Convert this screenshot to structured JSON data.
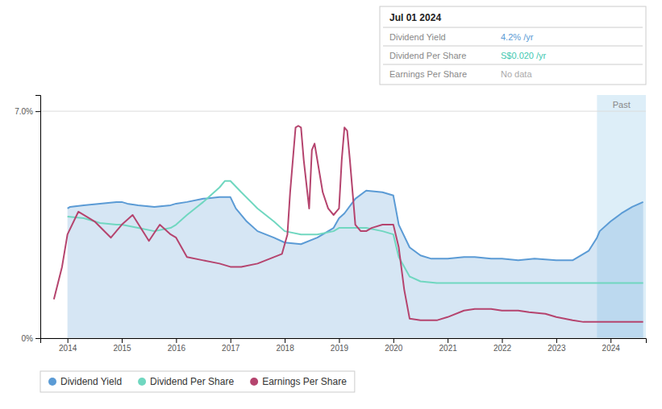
{
  "chart_data": {
    "type": "line",
    "xlim": [
      2013.5,
      2024.65
    ],
    "xticks": [
      2014,
      2015,
      2016,
      2017,
      2018,
      2019,
      2020,
      2021,
      2022,
      2023,
      2024
    ],
    "ylim": [
      0,
      7.5
    ],
    "yticks": [
      {
        "value": 0,
        "label": "0%"
      },
      {
        "value": 7.0,
        "label": "7.0%"
      }
    ],
    "grid": "y",
    "legend": "bottom",
    "annotations": [
      {
        "label": "Past",
        "xlim": [
          2023.75,
          2024.65
        ],
        "color": "#ddeef8"
      }
    ],
    "info_box": {
      "title": "Jul 01 2024",
      "rows": [
        {
          "label": "Dividend Yield",
          "value": "4.2% /yr",
          "color": "#5b9bd5"
        },
        {
          "label": "Dividend Per Share",
          "value": "S$0.020 /yr",
          "color": "#40c8b0"
        },
        {
          "label": "Earnings Per Share",
          "value": "No data",
          "color": "#aaaaaa"
        }
      ]
    },
    "series": [
      {
        "name": "Dividend Yield",
        "type": "area",
        "color": "#5b9bd5",
        "x": [
          2014.0,
          2014.05,
          2014.3,
          2014.6,
          2014.9,
          2015.0,
          2015.1,
          2015.3,
          2015.6,
          2015.9,
          2016.0,
          2016.2,
          2016.5,
          2016.8,
          2017.0,
          2017.1,
          2017.3,
          2017.5,
          2017.8,
          2018.0,
          2018.3,
          2018.6,
          2018.9,
          2019.0,
          2019.1,
          2019.3,
          2019.5,
          2019.8,
          2020.0,
          2020.1,
          2020.3,
          2020.5,
          2020.7,
          2021.0,
          2021.3,
          2021.5,
          2021.8,
          2022.0,
          2022.3,
          2022.6,
          2023.0,
          2023.3,
          2023.6,
          2023.75,
          2023.8,
          2024.0,
          2024.2,
          2024.4,
          2024.6
        ],
        "values": [
          4.0,
          4.05,
          4.1,
          4.15,
          4.2,
          4.2,
          4.15,
          4.1,
          4.05,
          4.1,
          4.15,
          4.2,
          4.3,
          4.35,
          4.35,
          4.0,
          3.6,
          3.3,
          3.1,
          2.95,
          2.9,
          3.1,
          3.4,
          3.7,
          3.85,
          4.3,
          4.55,
          4.5,
          4.4,
          3.5,
          2.8,
          2.55,
          2.45,
          2.45,
          2.5,
          2.5,
          2.45,
          2.45,
          2.4,
          2.45,
          2.4,
          2.4,
          2.7,
          3.1,
          3.3,
          3.6,
          3.85,
          4.05,
          4.2
        ]
      },
      {
        "name": "Dividend Per Share",
        "type": "line",
        "color": "#70d7c0",
        "x": [
          2014.0,
          2014.3,
          2014.6,
          2014.9,
          2015.0,
          2015.3,
          2015.6,
          2015.9,
          2016.0,
          2016.2,
          2016.5,
          2016.8,
          2016.9,
          2017.0,
          2017.2,
          2017.5,
          2017.8,
          2018.0,
          2018.3,
          2018.6,
          2018.9,
          2019.0,
          2019.3,
          2019.5,
          2019.8,
          2020.0,
          2020.1,
          2020.3,
          2020.5,
          2020.8,
          2021.0,
          2021.5,
          2022.0,
          2022.5,
          2023.0,
          2023.5,
          2023.75,
          2024.0,
          2024.3,
          2024.6
        ],
        "values": [
          3.75,
          3.7,
          3.55,
          3.5,
          3.5,
          3.4,
          3.3,
          3.4,
          3.5,
          3.8,
          4.2,
          4.65,
          4.85,
          4.85,
          4.5,
          4.0,
          3.6,
          3.3,
          3.2,
          3.2,
          3.3,
          3.4,
          3.4,
          3.4,
          3.3,
          3.2,
          2.5,
          1.9,
          1.75,
          1.7,
          1.7,
          1.7,
          1.7,
          1.7,
          1.7,
          1.7,
          1.7,
          1.7,
          1.7,
          1.7
        ]
      },
      {
        "name": "Earnings Per Share",
        "type": "line",
        "color": "#b5446e",
        "x": [
          2013.75,
          2013.9,
          2014.0,
          2014.2,
          2014.5,
          2014.8,
          2015.0,
          2015.2,
          2015.5,
          2015.7,
          2015.9,
          2016.0,
          2016.2,
          2016.5,
          2016.8,
          2017.0,
          2017.2,
          2017.5,
          2017.8,
          2017.95,
          2018.05,
          2018.1,
          2018.2,
          2018.25,
          2018.3,
          2018.35,
          2018.45,
          2018.5,
          2018.55,
          2018.6,
          2018.7,
          2018.8,
          2018.9,
          2018.95,
          2019.0,
          2019.05,
          2019.1,
          2019.15,
          2019.2,
          2019.25,
          2019.3,
          2019.4,
          2019.5,
          2019.6,
          2019.8,
          2020.0,
          2020.1,
          2020.2,
          2020.3,
          2020.5,
          2020.8,
          2021.0,
          2021.3,
          2021.5,
          2021.8,
          2022.0,
          2022.3,
          2022.5,
          2022.8,
          2023.0,
          2023.3,
          2023.5,
          2023.75,
          2024.0,
          2024.3,
          2024.6
        ],
        "values": [
          1.2,
          2.2,
          3.2,
          3.9,
          3.6,
          3.1,
          3.5,
          3.8,
          3.0,
          3.5,
          3.2,
          3.1,
          2.5,
          2.4,
          2.3,
          2.2,
          2.2,
          2.3,
          2.5,
          2.6,
          3.2,
          4.5,
          6.5,
          6.55,
          6.5,
          5.5,
          4.0,
          5.8,
          6.0,
          5.5,
          4.5,
          4.0,
          3.8,
          3.9,
          4.0,
          5.5,
          6.5,
          6.4,
          5.5,
          4.5,
          3.5,
          3.3,
          3.3,
          3.4,
          3.5,
          3.5,
          2.8,
          1.5,
          0.6,
          0.55,
          0.55,
          0.65,
          0.85,
          0.9,
          0.9,
          0.85,
          0.85,
          0.8,
          0.75,
          0.65,
          0.55,
          0.5,
          0.5,
          0.5,
          0.5,
          0.5
        ]
      }
    ]
  }
}
